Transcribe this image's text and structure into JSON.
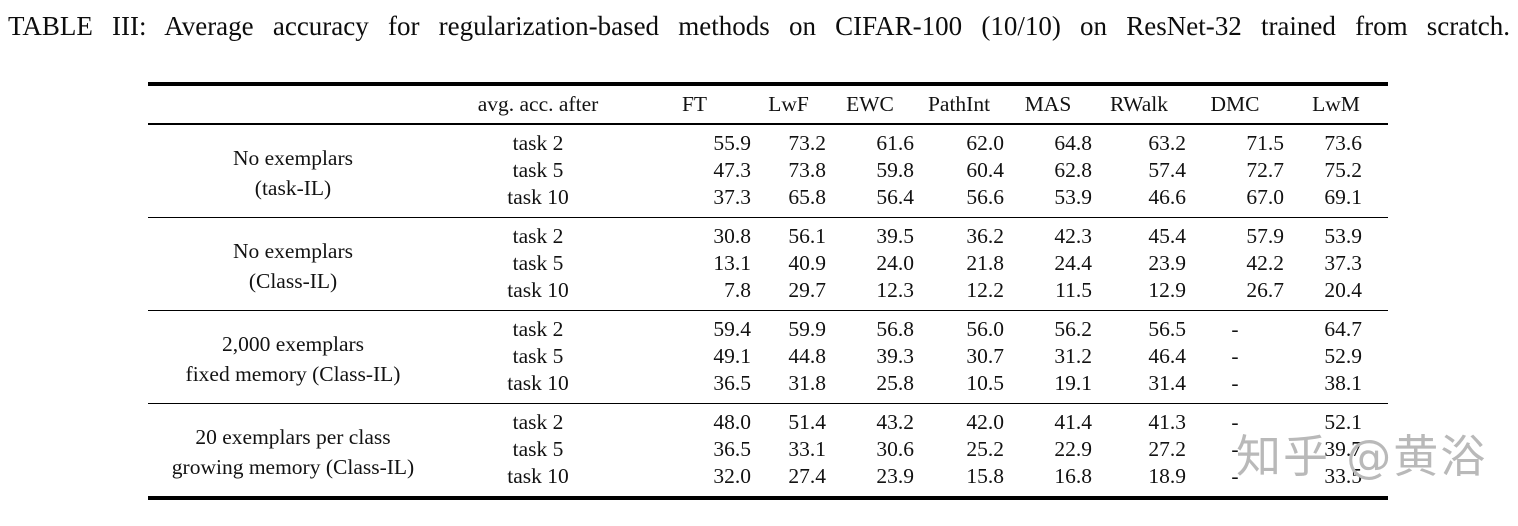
{
  "title": "TABLE III: Average accuracy for regularization-based methods on CIFAR-100 (10/10) on ResNet-32 trained from scratch.",
  "watermark": {
    "text": "知乎 @黄浴",
    "color": "#b9b9b9"
  },
  "colors": {
    "text": "#121212",
    "rule": "#000000",
    "background": "#ffffff"
  },
  "chart_data": {
    "type": "table",
    "title": "TABLE III: Average accuracy for regularization-based methods on CIFAR-100 (10/10) on ResNet-32 trained from scratch.",
    "columns": [
      "avg. acc. after",
      "FT",
      "LwF",
      "EWC",
      "PathInt",
      "MAS",
      "RWalk",
      "DMC",
      "LwM"
    ],
    "groups": [
      {
        "label_lines": [
          "No exemplars",
          "(task-IL)"
        ],
        "rows": [
          {
            "task": "task 2",
            "values": [
              "55.9",
              "73.2",
              "61.6",
              "62.0",
              "64.8",
              "63.2",
              "71.5",
              "73.6"
            ]
          },
          {
            "task": "task 5",
            "values": [
              "47.3",
              "73.8",
              "59.8",
              "60.4",
              "62.8",
              "57.4",
              "72.7",
              "75.2"
            ]
          },
          {
            "task": "task 10",
            "values": [
              "37.3",
              "65.8",
              "56.4",
              "56.6",
              "53.9",
              "46.6",
              "67.0",
              "69.1"
            ]
          }
        ]
      },
      {
        "label_lines": [
          "No exemplars",
          "(Class-IL)"
        ],
        "rows": [
          {
            "task": "task 2",
            "values": [
              "30.8",
              "56.1",
              "39.5",
              "36.2",
              "42.3",
              "45.4",
              "57.9",
              "53.9"
            ]
          },
          {
            "task": "task 5",
            "values": [
              "13.1",
              "40.9",
              "24.0",
              "21.8",
              "24.4",
              "23.9",
              "42.2",
              "37.3"
            ]
          },
          {
            "task": "task 10",
            "values": [
              "7.8",
              "29.7",
              "12.3",
              "12.2",
              "11.5",
              "12.9",
              "26.7",
              "20.4"
            ]
          }
        ]
      },
      {
        "label_lines": [
          "2,000 exemplars",
          "fixed memory (Class-IL)"
        ],
        "rows": [
          {
            "task": "task 2",
            "values": [
              "59.4",
              "59.9",
              "56.8",
              "56.0",
              "56.2",
              "56.5",
              "-",
              "64.7"
            ]
          },
          {
            "task": "task 5",
            "values": [
              "49.1",
              "44.8",
              "39.3",
              "30.7",
              "31.2",
              "46.4",
              "-",
              "52.9"
            ]
          },
          {
            "task": "task 10",
            "values": [
              "36.5",
              "31.8",
              "25.8",
              "10.5",
              "19.1",
              "31.4",
              "-",
              "38.1"
            ]
          }
        ]
      },
      {
        "label_lines": [
          "20 exemplars per class",
          "growing memory (Class-IL)"
        ],
        "rows": [
          {
            "task": "task 2",
            "values": [
              "48.0",
              "51.4",
              "43.2",
              "42.0",
              "41.4",
              "41.3",
              "-",
              "52.1"
            ]
          },
          {
            "task": "task 5",
            "values": [
              "36.5",
              "33.1",
              "30.6",
              "25.2",
              "22.9",
              "27.2",
              "-",
              "39.7"
            ]
          },
          {
            "task": "task 10",
            "values": [
              "32.0",
              "27.4",
              "23.9",
              "15.8",
              "16.8",
              "18.9",
              "-",
              "33.5"
            ]
          }
        ]
      }
    ]
  }
}
